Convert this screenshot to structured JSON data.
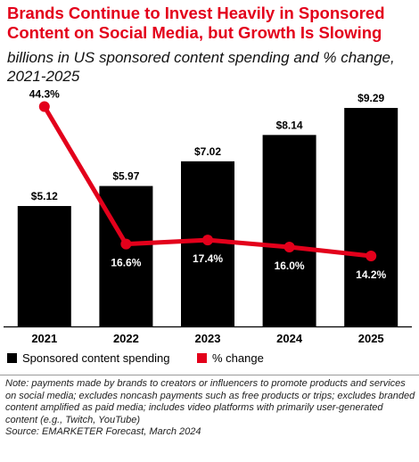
{
  "header": {
    "title": "Brands Continue to Invest Heavily in Sponsored Content on Social Media, but Growth Is Slowing",
    "subtitle": "billions in US sponsored content spending and % change, 2021-2025"
  },
  "colors": {
    "bar": "#000000",
    "line": "#e3001b",
    "axis": "#000000"
  },
  "chart_data": {
    "type": "bar",
    "title": "Brands Continue to Invest Heavily in Sponsored Content on Social Media, but Growth Is Slowing",
    "subtitle": "billions in US sponsored content spending and % change, 2021-2025",
    "categories": [
      "2021",
      "2022",
      "2023",
      "2024",
      "2025"
    ],
    "series": [
      {
        "name": "Sponsored content spending",
        "type": "bar",
        "values": [
          5.12,
          5.97,
          7.02,
          8.14,
          9.29
        ],
        "labels": [
          "$5.12",
          "$5.97",
          "$7.02",
          "$8.14",
          "$9.29"
        ]
      },
      {
        "name": "% change",
        "type": "line",
        "values": [
          44.3,
          16.6,
          17.4,
          16.0,
          14.2
        ],
        "labels": [
          "44.3%",
          "16.6%",
          "17.4%",
          "16.0%",
          "14.2%"
        ]
      }
    ],
    "ylim_bar": [
      0,
      9.29
    ],
    "ylim_line": [
      0,
      46
    ],
    "grid": false,
    "legend_position": "bottom"
  },
  "footer": {
    "note": "Note: payments made by brands to creators or influencers to promote products and services on social media; excludes noncash payments such as free products or trips; excludes branded content amplified as paid media; includes video platforms with primarily user-generated content (e.g., Twitch, YouTube)",
    "source": "Source: EMARKETER Forecast, March 2024"
  }
}
